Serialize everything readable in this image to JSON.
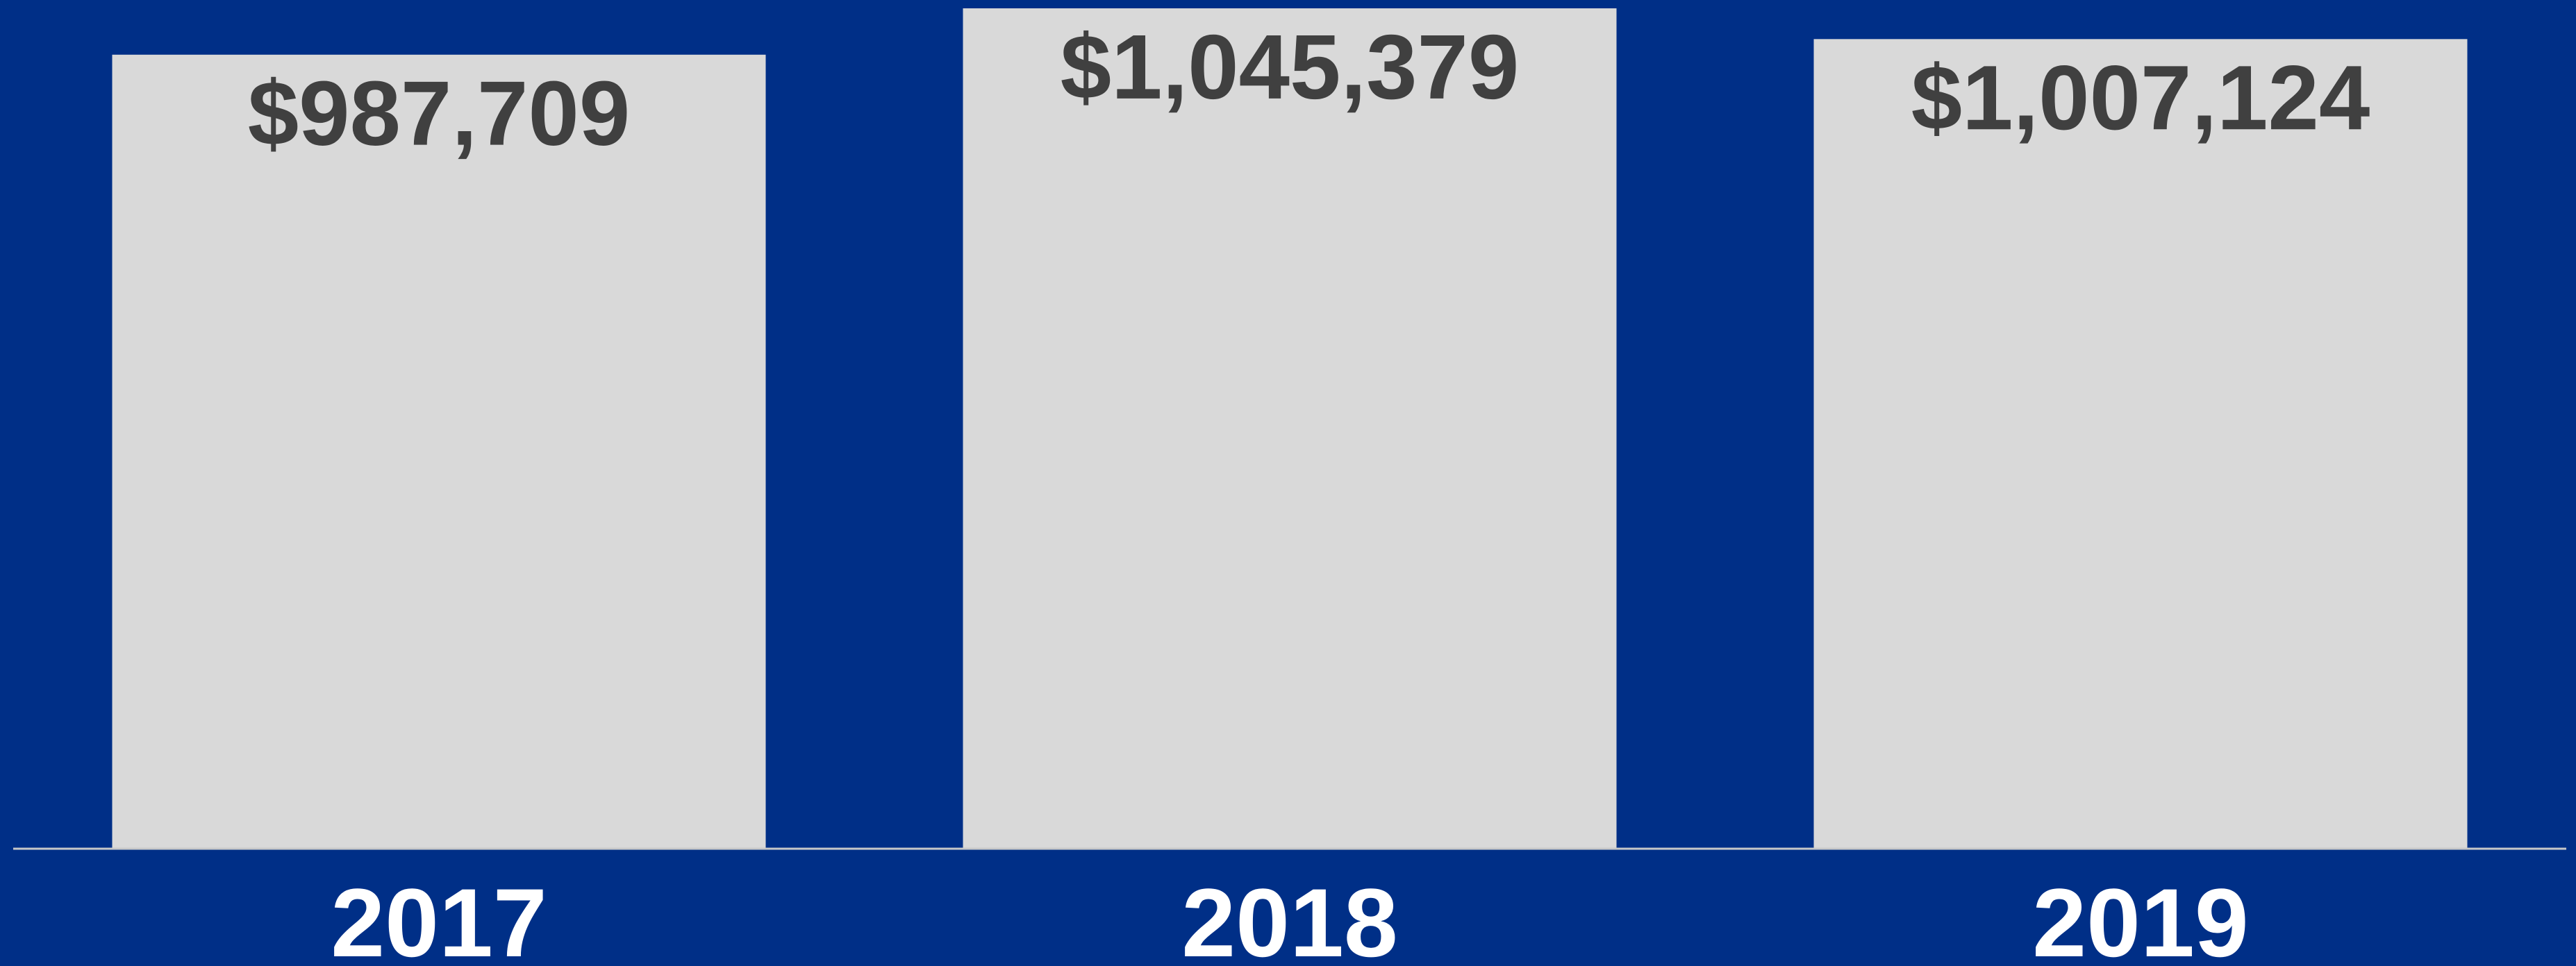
{
  "chart_data": {
    "type": "bar",
    "categories": [
      "2017",
      "2018",
      "2019"
    ],
    "values": [
      987709,
      1045379,
      1007124
    ],
    "value_labels": [
      "$987,709",
      "$1,045,379",
      "$1,007,124"
    ],
    "color": "#d9d9d9"
  }
}
